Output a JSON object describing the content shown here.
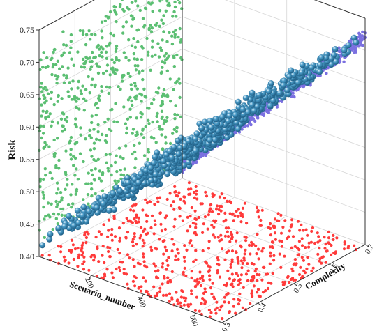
{
  "chart_data": {
    "type": "scatter",
    "subtype": "3d-scatter-with-projections",
    "axes": {
      "x": {
        "label": "Scenario_number",
        "ticks": [
          "200",
          "400",
          "600"
        ],
        "range": [
          0,
          700
        ]
      },
      "y": {
        "label": "Complexity",
        "ticks": [
          "0.3",
          "0.4",
          "0.5",
          "0.6",
          "0.7"
        ],
        "range": [
          0.3,
          0.7
        ]
      },
      "z": {
        "label": "Risk",
        "ticks": [
          "0.40",
          "0.45",
          "0.50",
          "0.55",
          "0.60",
          "0.65",
          "0.70",
          "0.75"
        ],
        "range": [
          0.4,
          0.75
        ]
      }
    },
    "grid": true,
    "legend": "none",
    "series": [
      {
        "role": "3d-points",
        "color": "#4a9bc7",
        "marker": "sphere",
        "count": 700
      },
      {
        "role": "projection-complexity-risk-wall",
        "color": "#5cbf73",
        "marker": "dot",
        "count": 700
      },
      {
        "role": "projection-scenario-risk-wall",
        "color": "#7b70e0",
        "marker": "dot",
        "count": 700
      },
      {
        "role": "projection-floor",
        "color": "#ff3b3b",
        "marker": "dot",
        "count": 700
      }
    ],
    "relationship": {
      "risk_vs_scenario": "near-linear increase from about 0.42 at scenario 0 to about 0.75 at scenario 700",
      "complexity": "roughly uniform between 0.3 and 0.7"
    }
  }
}
